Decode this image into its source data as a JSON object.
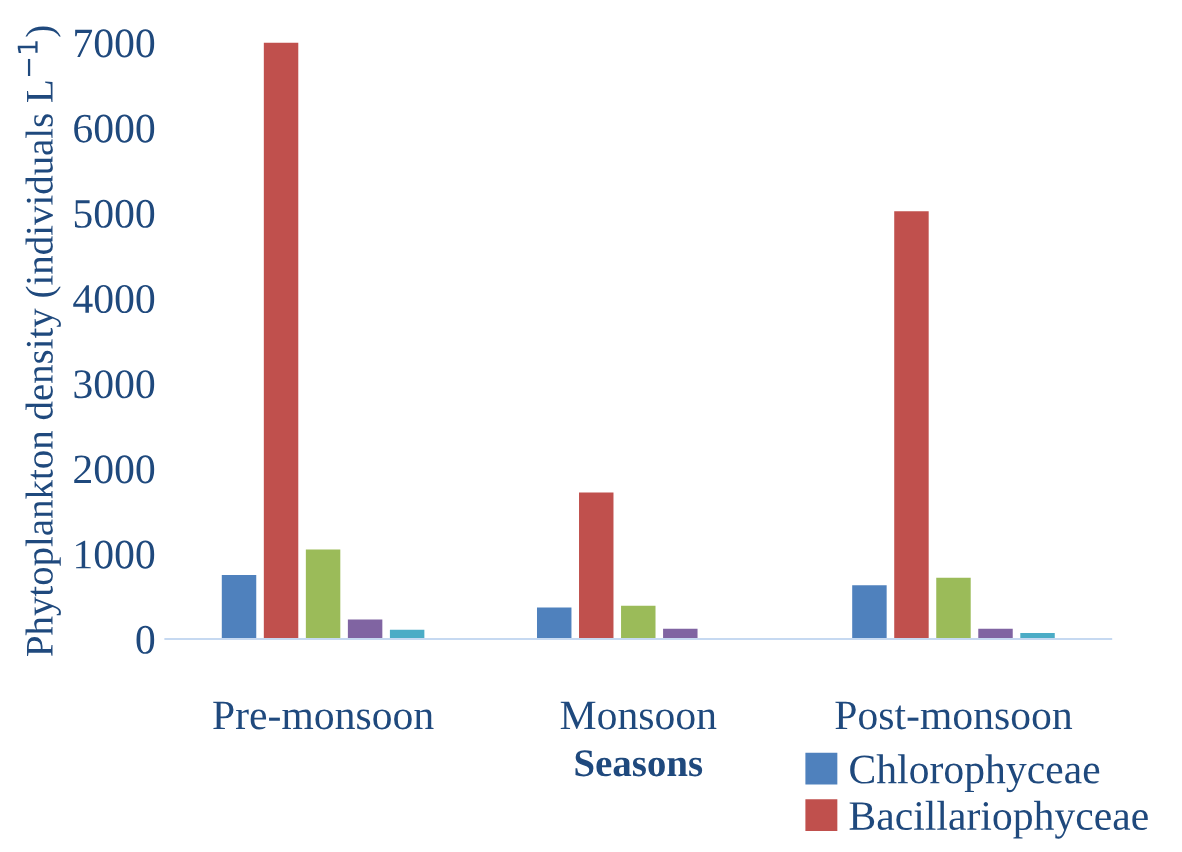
{
  "chart_data": {
    "type": "bar",
    "ylabel": "Phytoplankton density (individuals L$^{−1}$)",
    "xlabel": "Seasons",
    "categories": [
      "Pre-monsoon",
      "Monsoon",
      "Post-monsoon"
    ],
    "series": [
      {
        "name": "Chlorophyceae",
        "color": "#4f81bd",
        "values": [
          750,
          370,
          630
        ]
      },
      {
        "name": "Bacillariophyceae",
        "color": "#c0504d",
        "values": [
          7000,
          1720,
          5020
        ]
      },
      {
        "color": "#9bbb59",
        "values": [
          1050,
          390,
          720
        ]
      },
      {
        "color": "#8064a2",
        "values": [
          230,
          120,
          120
        ]
      },
      {
        "color": "#4bacc6",
        "values": [
          110,
          null,
          70
        ]
      }
    ],
    "ylim": [
      0,
      7000
    ],
    "yticks": [
      0,
      1000,
      2000,
      3000,
      4000,
      5000,
      6000,
      7000
    ],
    "grid": false,
    "legend": "bottom right"
  }
}
